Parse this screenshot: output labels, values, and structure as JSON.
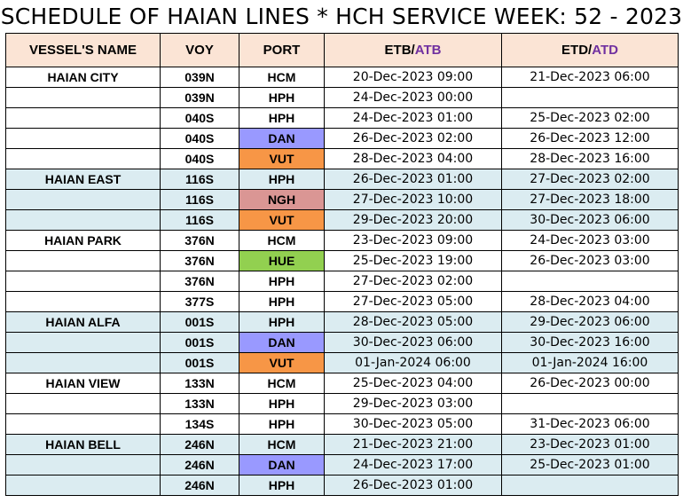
{
  "title": "SCHEDULE OF HAIAN LINES * HCH SERVICE WEEK: 52 - 2023",
  "headers": {
    "vessel": "VESSEL'S NAME",
    "voy": "VOY",
    "port": "PORT",
    "etb": "ETB",
    "atb": "ATB",
    "etd": "ETD",
    "atd": "ATD",
    "slash": "/"
  },
  "colors": {
    "header_bg": "#fbe4d5",
    "band_blue": "#dbecf1",
    "port_dan": "#9999ff",
    "port_vut": "#f79646",
    "port_ngh": "#da9694",
    "port_hue": "#92d050",
    "actual_text": "#7030a0"
  },
  "rows": [
    {
      "vessel": "HAIAN CITY",
      "voy": "039N",
      "port": "HCM",
      "etb": "20-Dec-2023 09:00",
      "etd": "21-Dec-2023 06:00",
      "band": "white",
      "port_color": ""
    },
    {
      "vessel": "",
      "voy": "039N",
      "port": "HPH",
      "etb": "24-Dec-2023 00:00",
      "etd": "",
      "band": "white",
      "port_color": ""
    },
    {
      "vessel": "",
      "voy": "040S",
      "port": "HPH",
      "etb": "24-Dec-2023 01:00",
      "etd": "25-Dec-2023 02:00",
      "band": "white",
      "port_color": ""
    },
    {
      "vessel": "",
      "voy": "040S",
      "port": "DAN",
      "etb": "26-Dec-2023 02:00",
      "etd": "26-Dec-2023 12:00",
      "band": "white",
      "port_color": "blue"
    },
    {
      "vessel": "",
      "voy": "040S",
      "port": "VUT",
      "etb": "28-Dec-2023 04:00",
      "etd": "28-Dec-2023 16:00",
      "band": "white",
      "port_color": "orange"
    },
    {
      "vessel": "HAIAN EAST",
      "voy": "116S",
      "port": "HPH",
      "etb": "26-Dec-2023 01:00",
      "etd": "27-Dec-2023 02:00",
      "band": "blue",
      "port_color": ""
    },
    {
      "vessel": "",
      "voy": "116S",
      "port": "NGH",
      "etb": "27-Dec-2023 10:00",
      "etd": "27-Dec-2023 18:00",
      "band": "blue",
      "port_color": "pink"
    },
    {
      "vessel": "",
      "voy": "116S",
      "port": "VUT",
      "etb": "29-Dec-2023 20:00",
      "etd": "30-Dec-2023 06:00",
      "band": "blue",
      "port_color": "orange"
    },
    {
      "vessel": "HAIAN PARK",
      "voy": "376N",
      "port": "HCM",
      "etb": "23-Dec-2023 09:00",
      "etd": "24-Dec-2023 03:00",
      "band": "white",
      "port_color": ""
    },
    {
      "vessel": "",
      "voy": "376N",
      "port": "HUE",
      "etb": "25-Dec-2023 19:00",
      "etd": "26-Dec-2023 03:00",
      "band": "white",
      "port_color": "green"
    },
    {
      "vessel": "",
      "voy": "376N",
      "port": "HPH",
      "etb": "27-Dec-2023 02:00",
      "etd": "",
      "band": "white",
      "port_color": ""
    },
    {
      "vessel": "",
      "voy": "377S",
      "port": "HPH",
      "etb": "27-Dec-2023 05:00",
      "etd": "28-Dec-2023 04:00",
      "band": "white",
      "port_color": ""
    },
    {
      "vessel": "HAIAN ALFA",
      "voy": "001S",
      "port": "HPH",
      "etb": "28-Dec-2023 05:00",
      "etd": "29-Dec-2023 06:00",
      "band": "blue",
      "port_color": ""
    },
    {
      "vessel": "",
      "voy": "001S",
      "port": "DAN",
      "etb": "30-Dec-2023 06:00",
      "etd": "30-Dec-2023 16:00",
      "band": "blue",
      "port_color": "blue"
    },
    {
      "vessel": "",
      "voy": "001S",
      "port": "VUT",
      "etb": "01-Jan-2024 06:00",
      "etd": "01-Jan-2024 16:00",
      "band": "blue",
      "port_color": "orange"
    },
    {
      "vessel": "HAIAN VIEW",
      "voy": "133N",
      "port": "HCM",
      "etb": "25-Dec-2023 04:00",
      "etd": "26-Dec-2023 00:00",
      "band": "white",
      "port_color": ""
    },
    {
      "vessel": "",
      "voy": "133N",
      "port": "HPH",
      "etb": "29-Dec-2023 03:00",
      "etd": "",
      "band": "white",
      "port_color": ""
    },
    {
      "vessel": "",
      "voy": "134S",
      "port": "HPH",
      "etb": "30-Dec-2023 05:00",
      "etd": "31-Dec-2023 06:00",
      "band": "white",
      "port_color": ""
    },
    {
      "vessel": "HAIAN BELL",
      "voy": "246N",
      "port": "HCM",
      "etb": "21-Dec-2023 21:00",
      "etd": "23-Dec-2023 01:00",
      "band": "blue",
      "port_color": ""
    },
    {
      "vessel": "",
      "voy": "246N",
      "port": "DAN",
      "etb": "24-Dec-2023 17:00",
      "etd": "25-Dec-2023 01:00",
      "band": "blue",
      "port_color": "blue"
    },
    {
      "vessel": "",
      "voy": "246N",
      "port": "HPH",
      "etb": "26-Dec-2023 01:00",
      "etd": "",
      "band": "blue",
      "port_color": ""
    }
  ]
}
